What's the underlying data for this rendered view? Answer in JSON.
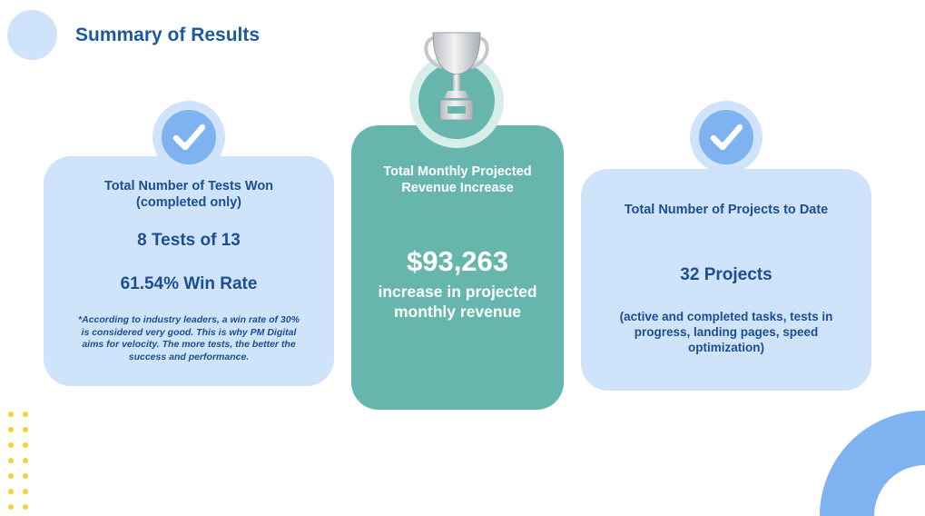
{
  "header": {
    "title": "Summary of Results"
  },
  "cards": {
    "tests_won": {
      "label": "Total Number of Tests Won (completed only)",
      "count": "8 Tests of 13",
      "rate": "61.54% Win Rate",
      "note": "*According to industry leaders, a win rate of 30% is considered very good. This is why PM Digital aims for velocity. The more tests, the better the success and performance."
    },
    "revenue": {
      "label": "Total Monthly Projected Revenue Increase",
      "amount": "$93,263",
      "caption": "increase in projected monthly revenue"
    },
    "projects": {
      "label": "Total Number of Projects to Date",
      "count": "32 Projects",
      "detail": "(active and completed tasks, tests in progress, landing pages, speed optimization)"
    }
  },
  "icons": {
    "check": "check-icon",
    "trophy": "trophy-icon"
  },
  "colors": {
    "title": "#1c5aa0",
    "card_light": "#cfe3fb",
    "card_teal": "#66b6ae",
    "accent_blue": "#7fb2f0",
    "dot_yellow": "#f5cf3a"
  }
}
